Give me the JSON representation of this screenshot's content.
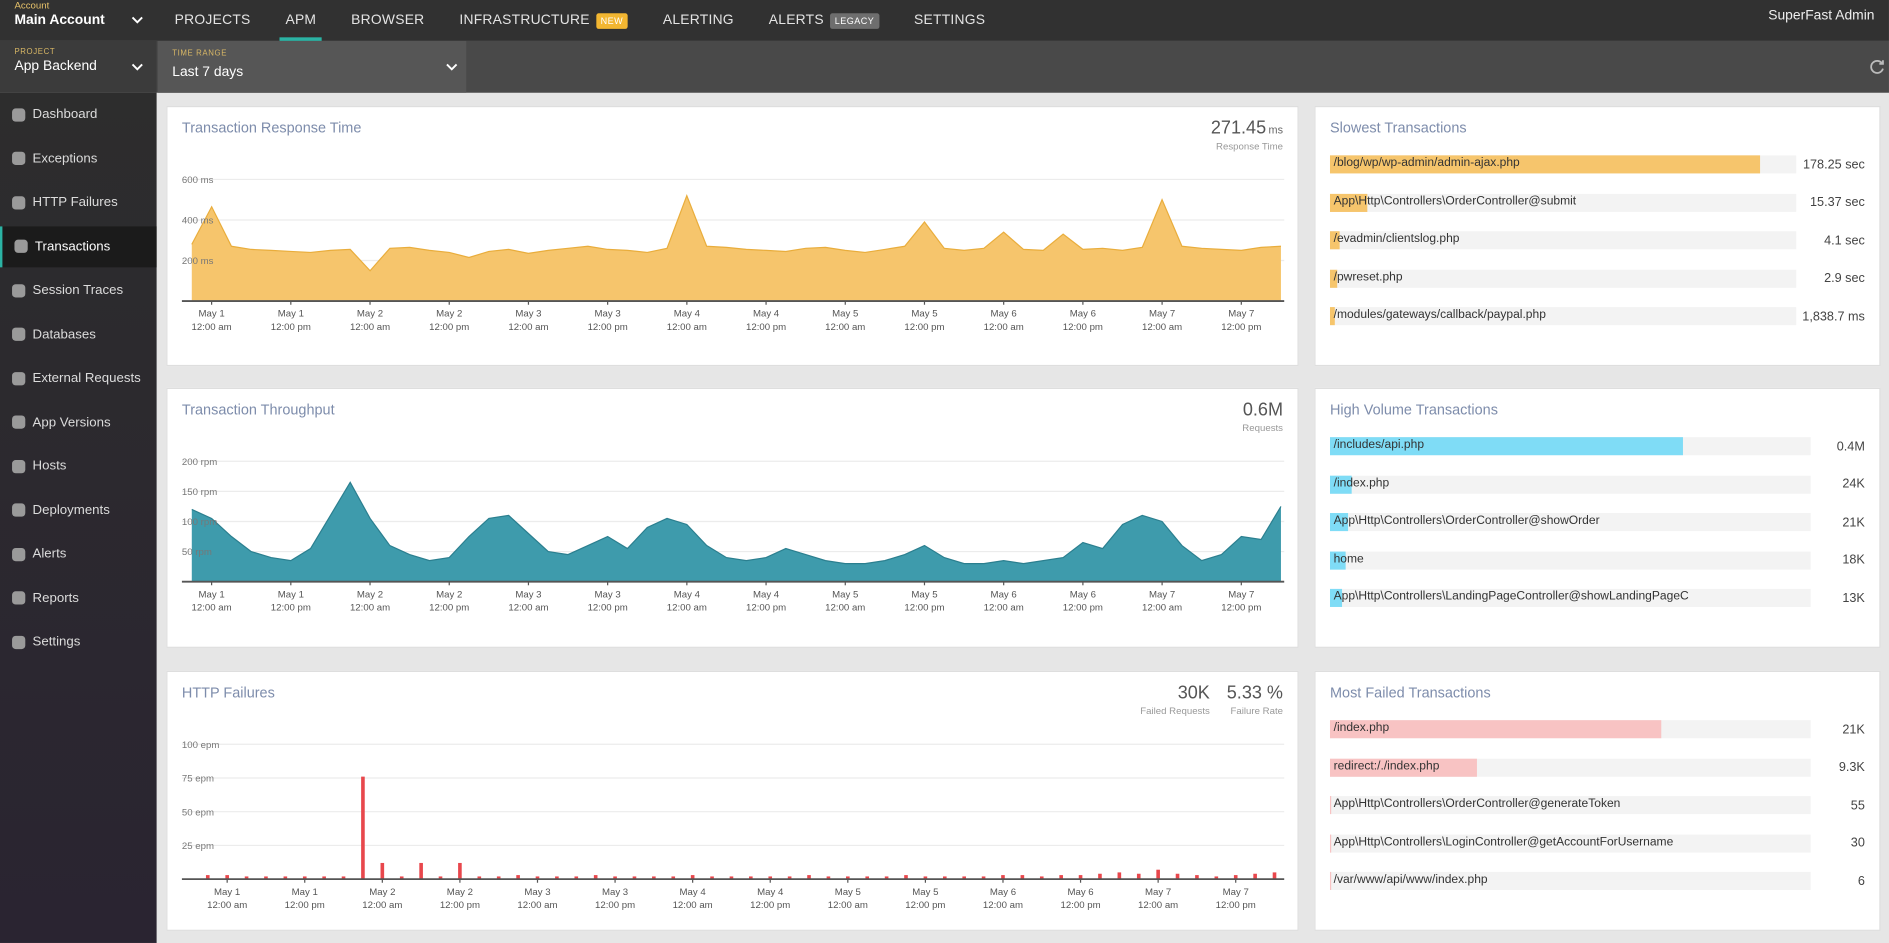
{
  "topbar": {
    "account_label": "Account",
    "account": "Main Account",
    "user": "SuperFast Admin",
    "nav": [
      {
        "label": "PROJECTS"
      },
      {
        "label": "APM",
        "active": true
      },
      {
        "label": "BROWSER"
      },
      {
        "label": "INFRASTRUCTURE",
        "badge": "NEW",
        "badge_color": "#f2b631"
      },
      {
        "label": "ALERTING"
      },
      {
        "label": "ALERTS",
        "badge": "LEGACY",
        "badge_color": "#6e6e6e"
      },
      {
        "label": "SETTINGS"
      }
    ]
  },
  "filters": {
    "project_label": "PROJECT",
    "project": "App Backend",
    "time_range_label": "TIME RANGE",
    "time_range": "Last 7 days"
  },
  "sidebar": [
    {
      "label": "Dashboard"
    },
    {
      "label": "Exceptions"
    },
    {
      "label": "HTTP Failures"
    },
    {
      "label": "Transactions",
      "active": true
    },
    {
      "label": "Session Traces"
    },
    {
      "label": "Databases"
    },
    {
      "label": "External Requests"
    },
    {
      "label": "App Versions"
    },
    {
      "label": "Hosts"
    },
    {
      "label": "Deployments"
    },
    {
      "label": "Alerts"
    },
    {
      "label": "Reports"
    },
    {
      "label": "Settings"
    }
  ],
  "chart_data": [
    {
      "type": "area",
      "title": "Transaction Response Time",
      "color": "#f6c56c",
      "line_color": "#e9ad3c",
      "stats": [
        {
          "value": "271.45",
          "unit": "ms",
          "label": "Response Time"
        }
      ],
      "x": [
        -3,
        0,
        3,
        6,
        9,
        12,
        15,
        18,
        21,
        24,
        27,
        30,
        33,
        36,
        39,
        42,
        45,
        48,
        51,
        54,
        57,
        60,
        63,
        66,
        69,
        72,
        75,
        78,
        81,
        84,
        87,
        90,
        93,
        96,
        99,
        102,
        105,
        108,
        111,
        114,
        117,
        120,
        123,
        126,
        129,
        132,
        135,
        138,
        141,
        144,
        147,
        150,
        153,
        156,
        159,
        162
      ],
      "values": [
        280,
        465,
        270,
        255,
        250,
        245,
        240,
        250,
        255,
        150,
        260,
        265,
        250,
        240,
        215,
        245,
        255,
        235,
        250,
        260,
        270,
        255,
        250,
        240,
        260,
        520,
        270,
        265,
        255,
        250,
        245,
        260,
        265,
        250,
        240,
        255,
        270,
        390,
        260,
        250,
        260,
        340,
        255,
        250,
        330,
        255,
        260,
        250,
        265,
        500,
        270,
        260,
        255,
        250,
        265,
        270
      ],
      "xlim": [
        -4.5,
        162.5
      ],
      "ylim": [
        0,
        600
      ],
      "yticks": [
        {
          "value": 200,
          "label": "200 ms"
        },
        {
          "value": 400,
          "label": "400 ms"
        },
        {
          "value": 600,
          "label": "600 ms"
        }
      ],
      "xticks": [
        {
          "value": 0,
          "label": "May 1",
          "sublabel": "12:00 am"
        },
        {
          "value": 12,
          "label": "May 1",
          "sublabel": "12:00 pm"
        },
        {
          "value": 24,
          "label": "May 2",
          "sublabel": "12:00 am"
        },
        {
          "value": 36,
          "label": "May 2",
          "sublabel": "12:00 pm"
        },
        {
          "value": 48,
          "label": "May 3",
          "sublabel": "12:00 am"
        },
        {
          "value": 60,
          "label": "May 3",
          "sublabel": "12:00 pm"
        },
        {
          "value": 72,
          "label": "May 4",
          "sublabel": "12:00 am"
        },
        {
          "value": 84,
          "label": "May 4",
          "sublabel": "12:00 pm"
        },
        {
          "value": 96,
          "label": "May 5",
          "sublabel": "12:00 am"
        },
        {
          "value": 108,
          "label": "May 5",
          "sublabel": "12:00 pm"
        },
        {
          "value": 120,
          "label": "May 6",
          "sublabel": "12:00 am"
        },
        {
          "value": 132,
          "label": "May 6",
          "sublabel": "12:00 pm"
        },
        {
          "value": 144,
          "label": "May 7",
          "sublabel": "12:00 am"
        },
        {
          "value": 156,
          "label": "May 7",
          "sublabel": "12:00 pm"
        }
      ]
    },
    {
      "type": "area",
      "title": "Transaction Throughput",
      "color": "#3e9bac",
      "line_color": "#2b7f8f",
      "stats": [
        {
          "value": "0.6M",
          "label": "Requests"
        }
      ],
      "x": [
        -3,
        0,
        3,
        6,
        9,
        12,
        15,
        18,
        21,
        24,
        27,
        30,
        33,
        36,
        39,
        42,
        45,
        48,
        51,
        54,
        57,
        60,
        63,
        66,
        69,
        72,
        75,
        78,
        81,
        84,
        87,
        90,
        93,
        96,
        99,
        102,
        105,
        108,
        111,
        114,
        117,
        120,
        123,
        126,
        129,
        132,
        135,
        138,
        141,
        144,
        147,
        150,
        153,
        156,
        159,
        162
      ],
      "values": [
        120,
        105,
        75,
        50,
        40,
        35,
        55,
        110,
        165,
        105,
        60,
        45,
        35,
        40,
        75,
        105,
        110,
        80,
        50,
        45,
        60,
        75,
        55,
        90,
        105,
        95,
        60,
        40,
        35,
        40,
        55,
        45,
        35,
        30,
        30,
        35,
        45,
        60,
        40,
        30,
        30,
        35,
        30,
        35,
        40,
        65,
        55,
        95,
        110,
        100,
        60,
        35,
        45,
        75,
        70,
        125
      ],
      "xlim": [
        -4.5,
        162.5
      ],
      "ylim": [
        0,
        200
      ],
      "yticks": [
        {
          "value": 50,
          "label": "50 rpm"
        },
        {
          "value": 100,
          "label": "100 rpm"
        },
        {
          "value": 150,
          "label": "150 rpm"
        },
        {
          "value": 200,
          "label": "200 rpm"
        }
      ],
      "xticks": [
        {
          "value": 0,
          "label": "May 1",
          "sublabel": "12:00 am"
        },
        {
          "value": 12,
          "label": "May 1",
          "sublabel": "12:00 pm"
        },
        {
          "value": 24,
          "label": "May 2",
          "sublabel": "12:00 am"
        },
        {
          "value": 36,
          "label": "May 2",
          "sublabel": "12:00 pm"
        },
        {
          "value": 48,
          "label": "May 3",
          "sublabel": "12:00 am"
        },
        {
          "value": 60,
          "label": "May 3",
          "sublabel": "12:00 pm"
        },
        {
          "value": 72,
          "label": "May 4",
          "sublabel": "12:00 am"
        },
        {
          "value": 84,
          "label": "May 4",
          "sublabel": "12:00 pm"
        },
        {
          "value": 96,
          "label": "May 5",
          "sublabel": "12:00 am"
        },
        {
          "value": 108,
          "label": "May 5",
          "sublabel": "12:00 pm"
        },
        {
          "value": 120,
          "label": "May 6",
          "sublabel": "12:00 am"
        },
        {
          "value": 132,
          "label": "May 6",
          "sublabel": "12:00 pm"
        },
        {
          "value": 144,
          "label": "May 7",
          "sublabel": "12:00 am"
        },
        {
          "value": 156,
          "label": "May 7",
          "sublabel": "12:00 pm"
        }
      ]
    },
    {
      "type": "bar",
      "title": "HTTP Failures",
      "color": "#e8474c",
      "stats": [
        {
          "value": "30K",
          "label": "Failed Requests"
        },
        {
          "value": "5.33 %",
          "label": "Failure Rate"
        }
      ],
      "x": [
        -3,
        0,
        3,
        6,
        9,
        12,
        15,
        18,
        21,
        24,
        27,
        30,
        33,
        36,
        39,
        42,
        45,
        48,
        51,
        54,
        57,
        60,
        63,
        66,
        69,
        72,
        75,
        78,
        81,
        84,
        87,
        90,
        93,
        96,
        99,
        102,
        105,
        108,
        111,
        114,
        117,
        120,
        123,
        126,
        129,
        132,
        135,
        138,
        141,
        144,
        147,
        150,
        153,
        156,
        159,
        162
      ],
      "values": [
        3,
        3,
        2,
        2,
        2,
        2,
        2,
        2,
        76,
        12,
        2,
        12,
        2,
        12,
        2,
        2,
        3,
        2,
        2,
        2,
        3,
        2,
        2,
        2,
        2,
        3,
        2,
        2,
        2,
        2,
        2,
        3,
        2,
        2,
        2,
        2,
        3,
        2,
        2,
        2,
        2,
        3,
        3,
        2,
        3,
        3,
        4,
        5,
        4,
        7,
        4,
        3,
        2,
        3,
        4,
        5
      ],
      "xlim": [
        -7,
        163.5
      ],
      "ylim": [
        0,
        100
      ],
      "yticks": [
        {
          "value": 25,
          "label": "25 epm"
        },
        {
          "value": 50,
          "label": "50 epm"
        },
        {
          "value": 75,
          "label": "75 epm"
        },
        {
          "value": 100,
          "label": "100 epm"
        }
      ],
      "xticks": [
        {
          "value": 0,
          "label": "May 1",
          "sublabel": "12:00 am"
        },
        {
          "value": 12,
          "label": "May 1",
          "sublabel": "12:00 pm"
        },
        {
          "value": 24,
          "label": "May 2",
          "sublabel": "12:00 am"
        },
        {
          "value": 36,
          "label": "May 2",
          "sublabel": "12:00 pm"
        },
        {
          "value": 48,
          "label": "May 3",
          "sublabel": "12:00 am"
        },
        {
          "value": 60,
          "label": "May 3",
          "sublabel": "12:00 pm"
        },
        {
          "value": 72,
          "label": "May 4",
          "sublabel": "12:00 am"
        },
        {
          "value": 84,
          "label": "May 4",
          "sublabel": "12:00 pm"
        },
        {
          "value": 96,
          "label": "May 5",
          "sublabel": "12:00 am"
        },
        {
          "value": 108,
          "label": "May 5",
          "sublabel": "12:00 pm"
        },
        {
          "value": 120,
          "label": "May 6",
          "sublabel": "12:00 am"
        },
        {
          "value": 132,
          "label": "May 6",
          "sublabel": "12:00 pm"
        },
        {
          "value": 144,
          "label": "May 7",
          "sublabel": "12:00 am"
        },
        {
          "value": 156,
          "label": "May 7",
          "sublabel": "12:00 pm"
        }
      ]
    }
  ],
  "lists": [
    {
      "title": "Slowest Transactions",
      "color": "#f6c56c",
      "xlim": [
        0,
        193
      ],
      "items": [
        {
          "name": "/blog/wp/wp-admin/admin-ajax.php",
          "value": 178.25,
          "value_label": "178.25 sec"
        },
        {
          "name": "App\\Http\\Controllers\\OrderController@submit",
          "value": 15.37,
          "value_label": "15.37 sec"
        },
        {
          "name": "/evadmin/clientslog.php",
          "value": 4.1,
          "value_label": "4.1 sec"
        },
        {
          "name": "/pwreset.php",
          "value": 2.9,
          "value_label": "2.9 sec"
        },
        {
          "name": "/modules/gateways/callback/paypal.php",
          "value": 1.8387,
          "value_label": "1,838.7 ms"
        }
      ]
    },
    {
      "title": "High Volume Transactions",
      "color": "#7fdcf6",
      "xlim": [
        0,
        545000
      ],
      "items": [
        {
          "name": "/includes/api.php",
          "value": 400000,
          "value_label": "0.4M"
        },
        {
          "name": "/index.php",
          "value": 24000,
          "value_label": "24K"
        },
        {
          "name": "App\\Http\\Controllers\\OrderController@showOrder",
          "value": 21000,
          "value_label": "21K"
        },
        {
          "name": "home",
          "value": 18000,
          "value_label": "18K"
        },
        {
          "name": "App\\Http\\Controllers\\LandingPageController@showLandingPageC",
          "value": 13000,
          "value_label": "13K"
        }
      ]
    },
    {
      "title": "Most Failed Transactions",
      "color": "#f8c3c3",
      "xlim": [
        0,
        30500
      ],
      "items": [
        {
          "name": "/index.php",
          "value": 21000,
          "value_label": "21K"
        },
        {
          "name": "redirect:/./index.php",
          "value": 9300,
          "value_label": "9.3K"
        },
        {
          "name": "App\\Http\\Controllers\\OrderController@generateToken",
          "value": 55,
          "value_label": "55"
        },
        {
          "name": "App\\Http\\Controllers\\LoginController@getAccountForUsername",
          "value": 30,
          "value_label": "30"
        },
        {
          "name": "/var/www/api/www/index.php",
          "value": 6,
          "value_label": "6"
        }
      ]
    }
  ]
}
